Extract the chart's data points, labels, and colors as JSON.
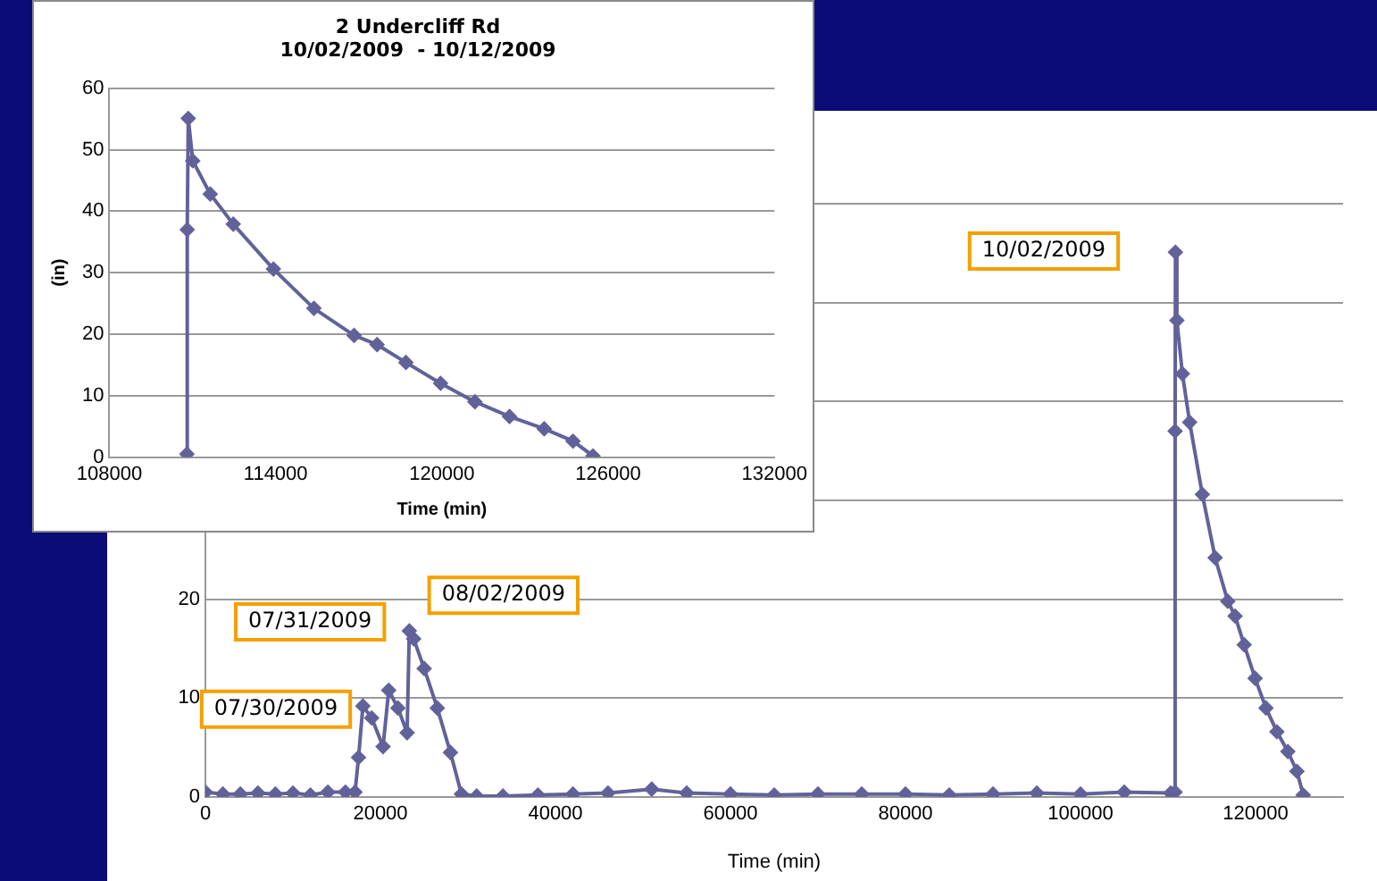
{
  "chart_data": [
    {
      "type": "line",
      "xlabel": "Time (min)",
      "xlim": [
        0,
        130000
      ],
      "xticks": [
        0,
        20000,
        40000,
        60000,
        80000,
        100000,
        120000
      ],
      "ylim": [
        0,
        60
      ],
      "yticks": [
        0,
        10,
        20,
        {
          "value": 30,
          "label": null
        },
        {
          "value": 40,
          "label": null
        },
        {
          "value": 50,
          "label": null
        },
        {
          "value": 60,
          "label": null
        }
      ],
      "grid": "y",
      "legend": false,
      "marker": "diamond",
      "line_style": "solid",
      "series": [
        {
          "color": "#62629a",
          "x": [
            0,
            2000,
            4000,
            6000,
            8000,
            10000,
            12000,
            14000,
            16000,
            17100,
            17500,
            18000,
            19000,
            20300,
            20950,
            22000,
            23050,
            23300,
            23800,
            25000,
            26500,
            28000,
            29260,
            31000,
            34000,
            38000,
            42000,
            46000,
            51000,
            55000,
            60000,
            65000,
            70000,
            75000,
            80000,
            85000,
            90000,
            95000,
            100000,
            105000,
            110300,
            110800,
            110810,
            110847,
            111010,
            111640,
            112470,
            113920,
            115380,
            116830,
            117660,
            118700,
            119950,
            121190,
            122440,
            123690,
            124730,
            125450
          ],
          "values": [
            0.5,
            0.3,
            0.3,
            0.4,
            0.3,
            0.4,
            0.2,
            0.5,
            0.5,
            0.5,
            4,
            9.2,
            8,
            5.1,
            10.8,
            9,
            6.5,
            16.8,
            16,
            13,
            9,
            4.5,
            0.3,
            0.1,
            0.1,
            0.2,
            0.3,
            0.4,
            0.8,
            0.4,
            0.3,
            0.2,
            0.3,
            0.3,
            0.3,
            0.2,
            0.3,
            0.4,
            0.3,
            0.5,
            0.4,
            0.5,
            37,
            55.1,
            48.2,
            42.8,
            37.9,
            30.6,
            24.2,
            19.8,
            18.3,
            15.4,
            12,
            9,
            6.6,
            4.6,
            2.6,
            0.2
          ]
        }
      ],
      "annotations": [
        "07/30/2009",
        "07/31/2009",
        "08/02/2009",
        "10/02/2009"
      ]
    },
    {
      "type": "line",
      "title": "2 Undercliff Rd",
      "subtitle": "10/02/2009  - 10/12/2009",
      "xlabel": "Time (min)",
      "ylabel": "(in)",
      "xlim": [
        108000,
        132000
      ],
      "xticks": [
        108000,
        114000,
        120000,
        126000,
        132000
      ],
      "ylim": [
        0,
        60
      ],
      "yticks": [
        0,
        10,
        20,
        30,
        40,
        50,
        60
      ],
      "grid": "y",
      "legend": false,
      "marker": "diamond",
      "line_style": "solid",
      "series": [
        {
          "color": "#62629a",
          "x": [
            110800,
            110810,
            110847,
            111010,
            111640,
            112470,
            113920,
            115380,
            116830,
            117660,
            118700,
            119950,
            121190,
            122440,
            123690,
            124730,
            125450
          ],
          "values": [
            0.5,
            37,
            55.1,
            48.2,
            42.8,
            37.9,
            30.6,
            24.2,
            19.8,
            18.3,
            15.4,
            12,
            9,
            6.6,
            4.6,
            2.6,
            0.2
          ]
        }
      ]
    }
  ]
}
